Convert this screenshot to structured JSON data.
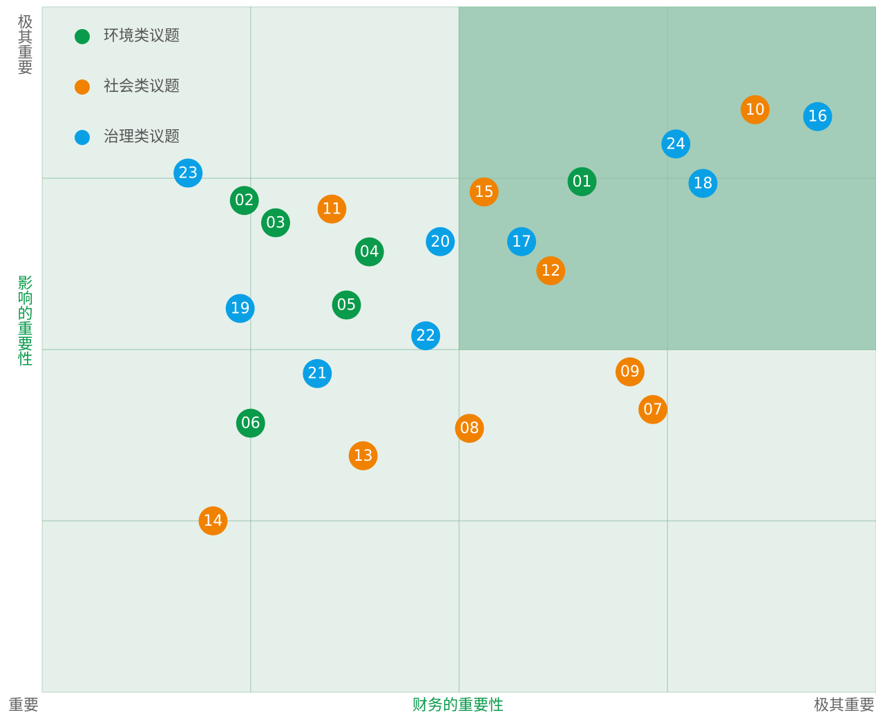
{
  "chart_data": {
    "type": "scatter",
    "x_label": "财务的重要性",
    "y_label": "影响的重要性",
    "axis_low_label": "重要",
    "x_high_label": "极其重要",
    "y_high_label": "极其重要",
    "xlim": [
      0,
      4
    ],
    "ylim": [
      0,
      4
    ],
    "xticks": [
      1,
      2,
      3
    ],
    "yticks": [
      1,
      2,
      3
    ],
    "grid": true,
    "highlight_region": {
      "x": [
        2,
        4
      ],
      "y": [
        2,
        4
      ],
      "color": "#a3cdb8"
    },
    "background_color": "#e6f0ea",
    "legend": "upper left",
    "series": [
      {
        "name": "环境类议题",
        "color": "#0a9a4b",
        "point_labels": [
          "01",
          "02",
          "03",
          "04",
          "05",
          "06"
        ],
        "x": [
          2.59,
          0.97,
          1.12,
          1.57,
          1.46,
          1.0
        ],
        "values": [
          2.98,
          2.87,
          2.74,
          2.57,
          2.26,
          1.57
        ]
      },
      {
        "name": "社会类议题",
        "color": "#f08200",
        "point_labels": [
          "07",
          "08",
          "09",
          "10",
          "11",
          "12",
          "13",
          "14",
          "15"
        ],
        "x": [
          2.93,
          2.05,
          2.82,
          3.42,
          1.39,
          2.44,
          1.54,
          0.82,
          2.12
        ],
        "values": [
          1.65,
          1.54,
          1.87,
          3.4,
          2.82,
          2.46,
          1.38,
          1.0,
          2.92
        ]
      },
      {
        "name": "治理类议题",
        "color": "#0aa0e6",
        "point_labels": [
          "16",
          "17",
          "18",
          "19",
          "20",
          "21",
          "22",
          "23",
          "24"
        ],
        "x": [
          3.72,
          2.3,
          3.17,
          0.95,
          1.91,
          1.32,
          1.84,
          0.7,
          3.04
        ],
        "values": [
          3.36,
          2.63,
          2.97,
          2.24,
          2.63,
          1.86,
          2.08,
          3.03,
          3.2
        ]
      }
    ]
  }
}
